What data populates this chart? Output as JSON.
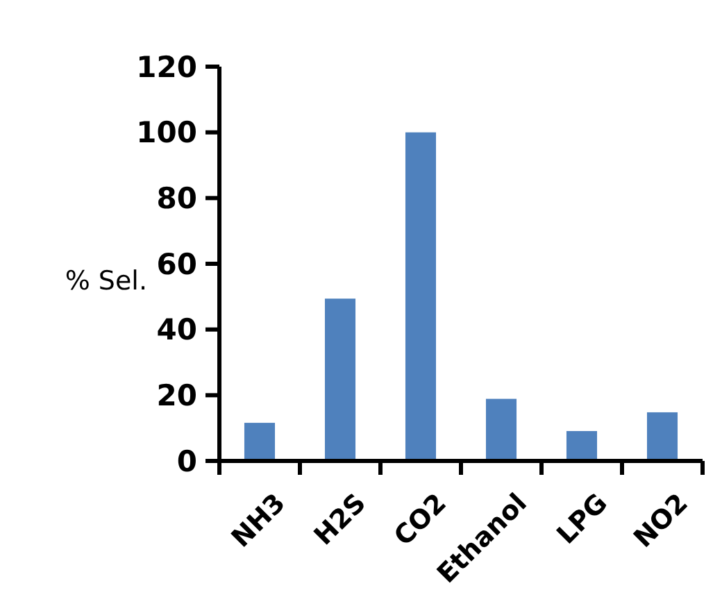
{
  "chart_data": {
    "type": "bar",
    "ylabel": "% Sel.",
    "categories": [
      "NH3",
      "H2S",
      "CO2",
      "Ethanol",
      "LPG",
      "NO2"
    ],
    "values": [
      11.6,
      49.4,
      100,
      18.9,
      9.1,
      14.8
    ],
    "color": "#4f81bd",
    "ylim": [
      0,
      120
    ],
    "yticks": [
      0,
      20,
      40,
      60,
      80,
      100,
      120
    ],
    "grid": false
  }
}
